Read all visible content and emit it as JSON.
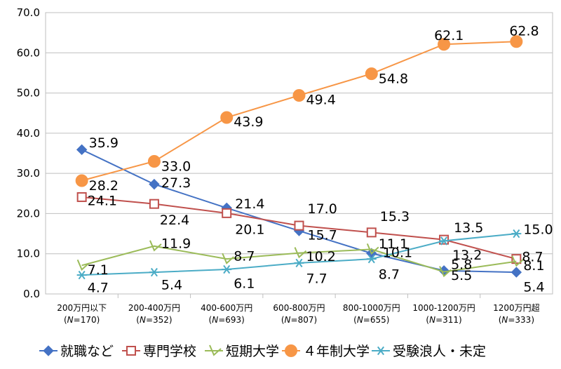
{
  "chart_data": {
    "type": "line",
    "ylim": [
      0,
      70
    ],
    "yticks": [
      "0.0",
      "10.0",
      "20.0",
      "30.0",
      "40.0",
      "50.0",
      "60.0",
      "70.0"
    ],
    "categories": [
      {
        "label": "200万円以下",
        "n": "170"
      },
      {
        "label": "200-400万円",
        "n": "352"
      },
      {
        "label": "400-600万円",
        "n": "693"
      },
      {
        "label": "600-800万円",
        "n": "807"
      },
      {
        "label": "800-1000万円",
        "n": "655"
      },
      {
        "label": "1000-1200万円",
        "n": "311"
      },
      {
        "label": "1200万円超",
        "n": "333"
      }
    ],
    "n_prefix": "(N=",
    "n_suffix": ")",
    "series": [
      {
        "name": "就職など",
        "color": "#4472C4",
        "marker": "diamond",
        "values": [
          35.9,
          27.3,
          21.4,
          15.7,
          10.1,
          5.8,
          5.4
        ],
        "labels": [
          "35.9",
          "27.3",
          "21.4",
          "15.7",
          "10.1",
          "5.8",
          "5.4"
        ]
      },
      {
        "name": "専門学校",
        "color": "#C0504D",
        "marker": "square",
        "values": [
          24.1,
          22.4,
          20.1,
          17.0,
          15.3,
          13.5,
          8.7
        ],
        "labels": [
          "24.1",
          "22.4",
          "20.1",
          "17.0",
          "15.3",
          "13.5",
          "8.7"
        ]
      },
      {
        "name": "短期大学",
        "color": "#9BBB59",
        "marker": "tri",
        "values": [
          7.1,
          11.9,
          8.7,
          10.2,
          11.1,
          5.5,
          8.1
        ],
        "labels": [
          "7.1",
          "11.9",
          "8.7",
          "10.2",
          "11.1",
          "5.5",
          "8.1"
        ]
      },
      {
        "name": "４年制大学",
        "color": "#F79646",
        "marker": "circle",
        "values": [
          28.2,
          33.0,
          43.9,
          49.4,
          54.8,
          62.1,
          62.8
        ],
        "labels": [
          "28.2",
          "33.0",
          "43.9",
          "49.4",
          "54.8",
          "62.1",
          "62.8"
        ]
      },
      {
        "name": "受験浪人・未定",
        "color": "#4BACC6",
        "marker": "star",
        "values": [
          4.7,
          5.4,
          6.1,
          7.7,
          8.7,
          13.2,
          15.0
        ],
        "labels": [
          "4.7",
          "5.4",
          "6.1",
          "7.7",
          "8.7",
          "13.2",
          "15.0"
        ]
      }
    ],
    "grid": "horizontal",
    "legend": "bottom"
  }
}
